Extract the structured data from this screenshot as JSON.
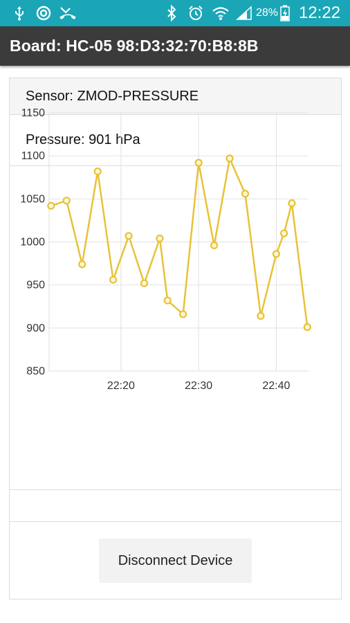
{
  "status_bar": {
    "battery_percent": "28%",
    "time": "12:22",
    "icons": [
      "usb-icon",
      "sync-icon",
      "missed-call-icon",
      "bluetooth-icon",
      "alarm-icon",
      "wifi-icon",
      "signal-icon",
      "battery-charging-icon"
    ]
  },
  "app_bar": {
    "title": "Board: HC-05 98:D3:32:70:B8:8B"
  },
  "sensor": {
    "header": "Sensor: ZMOD-PRESSURE",
    "reading": "Pressure: 901 hPa"
  },
  "chart_data": {
    "type": "line",
    "title": "",
    "xlabel": "",
    "ylabel": "",
    "x_ticks": [
      "22:20",
      "22:30",
      "22:40"
    ],
    "y_ticks": [
      850,
      900,
      950,
      1000,
      1050,
      1100,
      1150
    ],
    "ylim": [
      850,
      1150
    ],
    "xlim": [
      "22:11",
      "22:44"
    ],
    "grid": true,
    "series": [
      {
        "color": "#e8c237",
        "x": [
          "22:11",
          "22:13",
          "22:15",
          "22:17",
          "22:19",
          "22:21",
          "22:23",
          "22:25",
          "22:26",
          "22:28",
          "22:30",
          "22:32",
          "22:34",
          "22:36",
          "22:38",
          "22:40",
          "22:41",
          "22:42",
          "22:44"
        ],
        "values": [
          1042,
          1048,
          974,
          1082,
          956,
          1007,
          952,
          1004,
          932,
          916,
          1092,
          996,
          1097,
          1056,
          914,
          986,
          1010,
          1045,
          901
        ]
      }
    ]
  },
  "actions": {
    "disconnect_label": "Disconnect Device"
  }
}
